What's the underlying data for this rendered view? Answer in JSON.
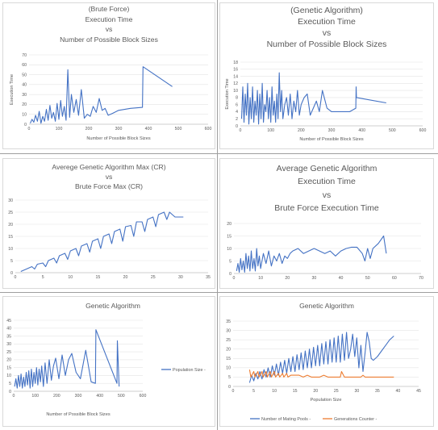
{
  "colors": {
    "blue": "#4472c4",
    "orange": "#ed7d31",
    "grid": "#e4e4e4",
    "axis": "#bfbfbf"
  },
  "chart_data": [
    {
      "id": "c1",
      "type": "line",
      "title_lines": [
        "(Brute Force)",
        "Execution Time",
        "vs",
        "Number of Possible Block Sizes"
      ],
      "xlabel": "Number of Possible Block Sizes",
      "ylabel": "Execution Time",
      "xlim": [
        0,
        600
      ],
      "ylim": [
        0,
        70
      ],
      "xticks": [
        0,
        100,
        200,
        300,
        400,
        500,
        600
      ],
      "yticks": [
        0,
        10,
        20,
        30,
        40,
        50,
        60,
        70
      ],
      "grid": true,
      "legend": "none",
      "series": [
        {
          "color": "blue",
          "x": [
            4,
            10,
            16,
            22,
            28,
            34,
            40,
            46,
            52,
            58,
            64,
            70,
            76,
            82,
            88,
            94,
            100,
            106,
            112,
            118,
            124,
            130,
            136,
            142,
            150,
            158,
            166,
            175,
            185,
            195,
            205,
            215,
            225,
            235,
            245,
            255,
            265,
            280,
            300,
            340,
            380,
            382,
            480
          ],
          "y": [
            1,
            5,
            2,
            9,
            3,
            13,
            1,
            8,
            3,
            15,
            4,
            19,
            6,
            12,
            3,
            21,
            5,
            24,
            8,
            18,
            4,
            55,
            7,
            30,
            12,
            25,
            9,
            35,
            6,
            10,
            8,
            18,
            12,
            26,
            14,
            16,
            9,
            11,
            14,
            16,
            17,
            58,
            38
          ]
        }
      ]
    },
    {
      "id": "c2",
      "type": "line",
      "title_lines": [
        "(Genetic Algorithm)",
        "Execution Time",
        "vs",
        "Number of Possible Block Sizes"
      ],
      "xlabel": "Number of Possible Block Sizes",
      "ylabel": "Execution Time",
      "xlim": [
        0,
        600
      ],
      "ylim": [
        0,
        18
      ],
      "xticks": [
        0,
        100,
        200,
        300,
        400,
        500,
        600
      ],
      "yticks": [
        0,
        2,
        4,
        6,
        8,
        10,
        12,
        14,
        16,
        18
      ],
      "grid": true,
      "legend": "none",
      "series": [
        {
          "color": "blue",
          "x": [
            4,
            8,
            12,
            16,
            20,
            24,
            28,
            32,
            36,
            40,
            44,
            48,
            52,
            56,
            60,
            64,
            68,
            72,
            76,
            80,
            84,
            88,
            92,
            96,
            100,
            104,
            108,
            112,
            116,
            120,
            124,
            128,
            132,
            136,
            140,
            146,
            152,
            158,
            164,
            170,
            176,
            182,
            188,
            194,
            200,
            210,
            220,
            230,
            240,
            250,
            260,
            270,
            285,
            300,
            330,
            360,
            380,
            381,
            382,
            480
          ],
          "y": [
            2,
            11,
            1,
            9,
            3,
            12,
            0.5,
            8,
            2,
            11,
            1,
            7,
            3,
            10,
            0.5,
            9,
            2,
            12,
            1,
            6,
            4,
            10,
            2,
            8,
            1,
            11,
            3,
            7,
            1,
            9,
            2,
            15,
            4,
            10,
            2,
            6,
            8,
            3,
            9,
            2,
            7,
            4,
            10,
            3,
            6,
            8,
            9,
            3,
            5,
            7,
            4,
            10,
            5,
            4,
            4,
            4,
            5,
            11,
            8,
            6.5
          ]
        }
      ]
    },
    {
      "id": "c3",
      "type": "line",
      "title_lines": [
        "Averege Genetic Algorithm Max (CR)",
        "vs",
        "Brute Force Max (CR)"
      ],
      "xlabel": "",
      "ylabel": "",
      "xlim": [
        0,
        35
      ],
      "ylim": [
        0,
        30
      ],
      "xticks": [
        0,
        5,
        10,
        15,
        20,
        25,
        30,
        35
      ],
      "yticks": [
        0,
        5,
        10,
        15,
        20,
        25,
        30
      ],
      "grid": true,
      "legend": "none",
      "series": [
        {
          "color": "blue",
          "x": [
            1,
            2,
            3,
            3.5,
            4,
            5,
            5.5,
            6,
            7,
            7.5,
            8,
            9,
            9.5,
            10,
            11,
            11.5,
            12,
            13,
            13.5,
            14,
            15,
            15.5,
            16,
            17,
            17.5,
            18,
            19,
            19.5,
            20,
            21,
            21.5,
            22,
            23,
            23.5,
            24,
            25,
            25.5,
            26,
            27,
            27.5,
            28,
            29,
            30,
            30.5
          ],
          "y": [
            0.5,
            1.5,
            2.5,
            1.5,
            3.5,
            4,
            2.5,
            5,
            6,
            4,
            7,
            8,
            5.5,
            9,
            10,
            7,
            11,
            12,
            8.5,
            13,
            14,
            10,
            15,
            16,
            12,
            17,
            18,
            13,
            19,
            19.5,
            15,
            21,
            21,
            17,
            22,
            23,
            19,
            24,
            25,
            22,
            25,
            23,
            23,
            23
          ]
        }
      ]
    },
    {
      "id": "c4",
      "type": "line",
      "title_lines": [
        "Average Genetic Algorithm",
        "Execution Time",
        "vs",
        "Brute Force Execution Time"
      ],
      "xlabel": "",
      "ylabel": "",
      "xlim": [
        0,
        70
      ],
      "ylim": [
        0,
        20
      ],
      "xticks": [
        0,
        10,
        20,
        30,
        40,
        50,
        60,
        70
      ],
      "yticks": [
        0,
        5,
        10,
        15,
        20
      ],
      "grid": true,
      "legend": "none",
      "series": [
        {
          "color": "blue",
          "x": [
            1,
            1.5,
            2,
            2.5,
            3,
            3.5,
            4,
            4.5,
            5,
            5.5,
            6,
            6.5,
            7,
            7.5,
            8,
            8.5,
            9,
            9.5,
            10,
            11,
            12,
            13,
            14,
            15,
            16,
            17,
            18,
            19,
            20,
            21,
            22,
            24,
            26,
            28,
            30,
            32,
            34,
            36,
            38,
            40,
            42,
            44,
            46,
            48,
            49,
            50,
            51,
            52,
            54,
            56,
            57
          ],
          "y": [
            1,
            4,
            0.5,
            6,
            1.5,
            5,
            0.5,
            8,
            2,
            7,
            1,
            9,
            2,
            6,
            1,
            10,
            3,
            7,
            2,
            8,
            4,
            9,
            3,
            7,
            5,
            8,
            4,
            7,
            6,
            8,
            9,
            10,
            8,
            9,
            10,
            9,
            8,
            9,
            7,
            9,
            10,
            10.5,
            10.5,
            8,
            5,
            10,
            6,
            10,
            12,
            15,
            8
          ]
        }
      ]
    },
    {
      "id": "c5",
      "type": "line",
      "title_lines": [
        "Genetic Algorithm"
      ],
      "xlabel": "Number of Possible Block Sizes",
      "ylabel": "",
      "xlim": [
        0,
        600
      ],
      "ylim": [
        0,
        45
      ],
      "xticks": [
        0,
        100,
        200,
        300,
        400,
        500,
        600
      ],
      "yticks": [
        0,
        5,
        10,
        15,
        20,
        25,
        30,
        35,
        40,
        45
      ],
      "grid": true,
      "legend": "right",
      "series": [
        {
          "name": "Population Size -",
          "color": "blue",
          "x": [
            4,
            10,
            16,
            22,
            28,
            34,
            40,
            46,
            52,
            58,
            64,
            70,
            76,
            82,
            88,
            94,
            100,
            106,
            112,
            118,
            124,
            130,
            138,
            146,
            155,
            165,
            175,
            185,
            195,
            210,
            225,
            240,
            255,
            270,
            290,
            310,
            335,
            360,
            380,
            382,
            480,
            482,
            490
          ],
          "y": [
            3,
            8,
            2,
            10,
            3,
            11,
            2,
            9,
            3,
            12,
            4,
            13,
            2,
            14,
            3,
            12,
            5,
            15,
            4,
            14,
            6,
            16,
            3,
            18,
            5,
            20,
            7,
            16,
            21,
            8,
            23,
            10,
            20,
            24,
            12,
            8,
            26,
            6,
            5,
            39,
            5,
            32,
            3
          ]
        }
      ]
    },
    {
      "id": "c6",
      "type": "line",
      "title_lines": [
        "Genetic Algorithm"
      ],
      "xlabel": "Population Size",
      "ylabel": "",
      "xlim": [
        0,
        45
      ],
      "ylim": [
        0,
        35
      ],
      "xticks": [
        0,
        5,
        10,
        15,
        20,
        25,
        30,
        35,
        40,
        45
      ],
      "yticks": [
        0,
        5,
        10,
        15,
        20,
        25,
        30,
        35
      ],
      "grid": true,
      "legend": "bottom",
      "series": [
        {
          "name": "Number of Mating Pools -",
          "color": "blue",
          "x": [
            4,
            4.5,
            5,
            5.5,
            6,
            6.5,
            7,
            7.5,
            8,
            8.5,
            9,
            9.5,
            10,
            10.5,
            11,
            11.5,
            12,
            12.5,
            13,
            13.5,
            14,
            14.5,
            15,
            15.5,
            16,
            16.5,
            17,
            17.5,
            18,
            18.5,
            19,
            19.5,
            20,
            20.5,
            21,
            21.5,
            22,
            22.5,
            23,
            23.5,
            24,
            24.5,
            25,
            25.5,
            26,
            26.5,
            27,
            27.5,
            28,
            28.5,
            29,
            29.5,
            30,
            30.5,
            31,
            31.5,
            32,
            32.5,
            33,
            33.5,
            34,
            35,
            36,
            37,
            38,
            39
          ],
          "y": [
            2,
            6,
            3,
            7,
            4,
            8,
            4,
            9,
            5,
            10,
            5,
            11,
            6,
            12,
            6,
            13,
            7,
            14,
            7,
            15,
            8,
            16,
            8,
            17,
            9,
            18,
            9,
            19,
            10,
            20,
            10,
            21,
            11,
            22,
            11,
            23,
            12,
            24,
            12,
            25,
            13,
            26,
            13,
            27,
            13,
            28,
            14,
            29,
            15,
            20,
            28,
            16,
            26,
            10,
            22,
            8,
            18,
            29,
            24,
            15,
            14,
            16,
            19,
            22,
            25,
            27
          ]
        },
        {
          "name": "Generations Counter -",
          "color": "orange",
          "x": [
            4,
            4.3,
            5,
            5.3,
            6,
            6.3,
            7,
            7.3,
            8,
            8.3,
            9,
            9.3,
            10,
            10.3,
            11,
            11.3,
            12,
            12.3,
            13,
            13.3,
            14,
            15,
            16,
            17,
            18,
            19,
            20,
            21,
            22,
            23,
            24,
            25,
            26,
            26.3,
            27,
            28,
            29,
            30,
            31,
            31.5,
            32,
            33,
            34,
            35,
            36,
            37,
            38,
            39
          ],
          "y": [
            9,
            5,
            8,
            5,
            8,
            5,
            8,
            5,
            8,
            5,
            8,
            5,
            8,
            5,
            7,
            5,
            7,
            5,
            7,
            5,
            6,
            6,
            6,
            5,
            6,
            5,
            5,
            5,
            6,
            5,
            5,
            5,
            5,
            8,
            5,
            5,
            5,
            5,
            5,
            6,
            5,
            5,
            5,
            5,
            5,
            5,
            5,
            5
          ]
        }
      ]
    }
  ]
}
